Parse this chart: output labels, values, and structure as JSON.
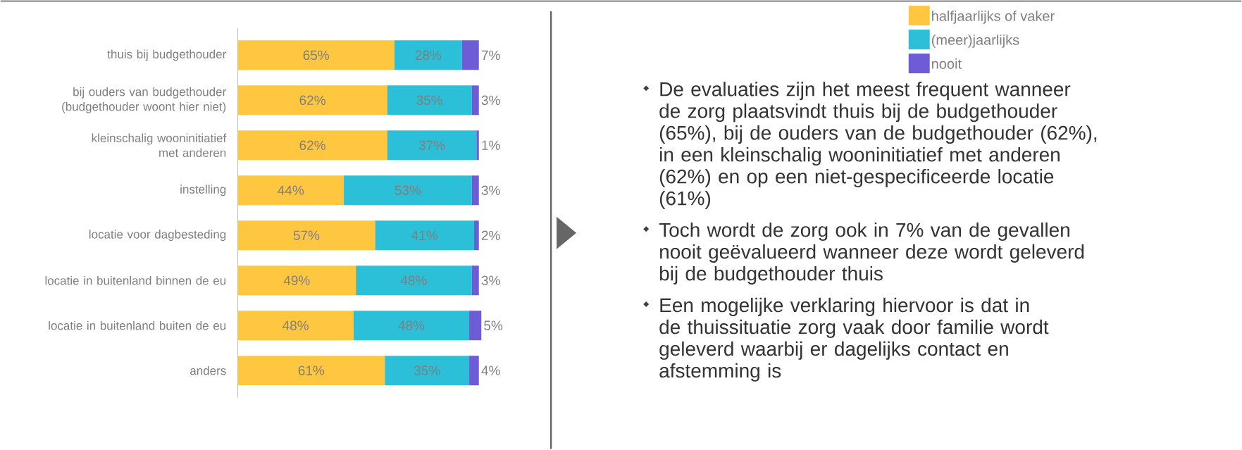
{
  "chart_data": {
    "type": "bar",
    "orientation": "horizontal",
    "stacked": true,
    "legend": "top right",
    "categories": [
      "thuis bij budgethouder",
      "bij ouders van budgethouder (budgethouder woont hier niet)",
      "kleinschalig wooninitiatief met anderen",
      "instelling",
      "locatie voor dagbesteding",
      "locatie in buitenland binnen de eu",
      "locatie in buitenland buiten de eu",
      "anders"
    ],
    "series": [
      {
        "name": "halfjaarlijks of vaker",
        "color": "#ffc640",
        "values": [
          65,
          62,
          62,
          44,
          57,
          49,
          48,
          61
        ],
        "value_labels": [
          "65%",
          "62%",
          "62%",
          "44%",
          "57%",
          "49%",
          "48%",
          "61%"
        ]
      },
      {
        "name": "(meer)jaarlijks",
        "color": "#2bbfd8",
        "values": [
          28,
          35,
          37,
          53,
          41,
          48,
          48,
          35
        ],
        "value_labels": [
          "28%",
          "35%",
          "37%",
          "53%",
          "41%",
          "48%",
          "48%",
          "35%"
        ]
      },
      {
        "name": "nooit",
        "color": "#6e5bd6",
        "values": [
          7,
          3,
          1,
          3,
          2,
          3,
          5,
          4
        ],
        "value_labels": [
          "7%",
          "3%",
          "1%",
          "3%",
          "2%",
          "3%",
          "5%",
          "4%"
        ]
      }
    ],
    "annotations": [
      "De evaluaties zijn het meest frequent wanneer de zorg plaatsvindt thuis bij de budgethouder (65%), bij de ouders van de budgethouder (62%), in een kleinschalig wooninitiatief met anderen (62%) en op een niet-gespecificeerde locatie (61%)",
      "Toch wordt de zorg ook in 7% van de gevallen nooit geëvalueerd wanneer deze wordt geleverd bij de budgethouder thuis",
      "Een mogelijke verklaring hiervoor is dat in de thuissituatie zorg vaak door familie wordt geleverd waarbij er dagelijks contact en afstemming is"
    ]
  }
}
